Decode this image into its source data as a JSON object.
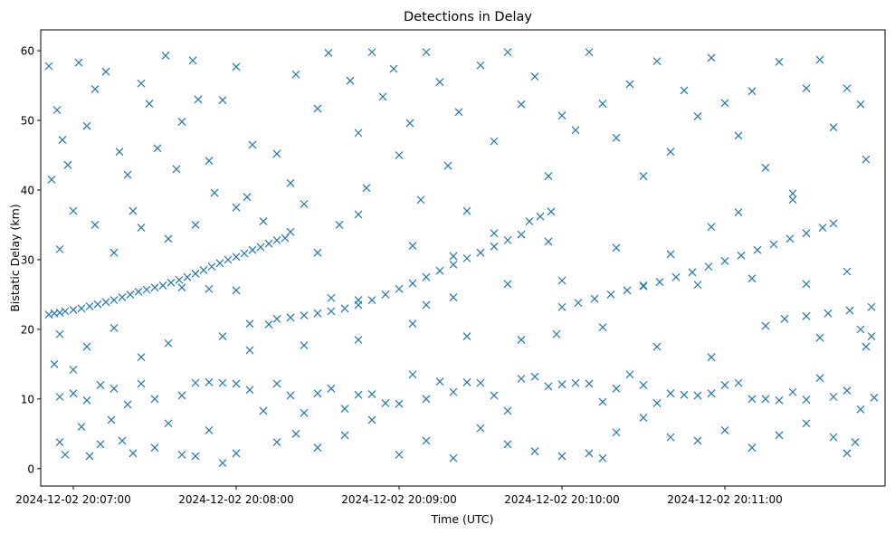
{
  "chart_data": {
    "type": "scatter",
    "title": "Detections in Delay",
    "xlabel": "Time (UTC)",
    "ylabel": "Bistatic Delay (km)",
    "marker": "x",
    "color": "#1f77b4",
    "grid": false,
    "legend": "none",
    "x_unit": "time",
    "xlim": [
      "2024-12-02 20:06:48",
      "2024-12-02 20:11:59"
    ],
    "ylim": [
      -2.5,
      63
    ],
    "xticks": [
      "2024-12-02 20:07:00",
      "2024-12-02 20:08:00",
      "2024-12-02 20:09:00",
      "2024-12-02 20:10:00",
      "2024-12-02 20:11:00"
    ],
    "yticks": [
      0,
      10,
      20,
      30,
      40,
      50,
      60
    ],
    "points": [
      [
        "2024-12-02 20:06:51",
        22.1
      ],
      [
        "2024-12-02 20:06:53",
        22.3
      ],
      [
        "2024-12-02 20:06:55",
        22.4
      ],
      [
        "2024-12-02 20:06:57",
        22.6
      ],
      [
        "2024-12-02 20:07:00",
        22.8
      ],
      [
        "2024-12-02 20:07:03",
        23.0
      ],
      [
        "2024-12-02 20:07:06",
        23.3
      ],
      [
        "2024-12-02 20:07:09",
        23.6
      ],
      [
        "2024-12-02 20:07:12",
        23.9
      ],
      [
        "2024-12-02 20:07:15",
        24.2
      ],
      [
        "2024-12-02 20:07:18",
        24.6
      ],
      [
        "2024-12-02 20:07:21",
        25.0
      ],
      [
        "2024-12-02 20:07:24",
        25.4
      ],
      [
        "2024-12-02 20:07:27",
        25.7
      ],
      [
        "2024-12-02 20:07:30",
        26.0
      ],
      [
        "2024-12-02 20:07:33",
        26.3
      ],
      [
        "2024-12-02 20:07:36",
        26.7
      ],
      [
        "2024-12-02 20:07:39",
        27.1
      ],
      [
        "2024-12-02 20:07:42",
        27.5
      ],
      [
        "2024-12-02 20:07:45",
        28.0
      ],
      [
        "2024-12-02 20:07:48",
        28.5
      ],
      [
        "2024-12-02 20:07:51",
        29.0
      ],
      [
        "2024-12-02 20:07:54",
        29.5
      ],
      [
        "2024-12-02 20:07:57",
        30.0
      ],
      [
        "2024-12-02 20:08:00",
        30.4
      ],
      [
        "2024-12-02 20:08:03",
        30.9
      ],
      [
        "2024-12-02 20:08:06",
        31.4
      ],
      [
        "2024-12-02 20:08:09",
        31.8
      ],
      [
        "2024-12-02 20:08:12",
        32.3
      ],
      [
        "2024-12-02 20:08:15",
        32.8
      ],
      [
        "2024-12-02 20:08:18",
        33.1
      ],
      [
        "2024-12-02 20:08:15",
        21.5
      ],
      [
        "2024-12-02 20:08:20",
        21.7
      ],
      [
        "2024-12-02 20:08:25",
        22.0
      ],
      [
        "2024-12-02 20:08:30",
        22.3
      ],
      [
        "2024-12-02 20:08:35",
        22.6
      ],
      [
        "2024-12-02 20:08:40",
        23.0
      ],
      [
        "2024-12-02 20:08:45",
        23.5
      ],
      [
        "2024-12-02 20:08:50",
        24.2
      ],
      [
        "2024-12-02 20:08:55",
        25.0
      ],
      [
        "2024-12-02 20:09:00",
        25.8
      ],
      [
        "2024-12-02 20:09:05",
        26.6
      ],
      [
        "2024-12-02 20:09:10",
        27.5
      ],
      [
        "2024-12-02 20:09:15",
        28.4
      ],
      [
        "2024-12-02 20:09:20",
        29.3
      ],
      [
        "2024-12-02 20:09:25",
        30.2
      ],
      [
        "2024-12-02 20:09:30",
        31.0
      ],
      [
        "2024-12-02 20:09:35",
        31.9
      ],
      [
        "2024-12-02 20:09:40",
        32.8
      ],
      [
        "2024-12-02 20:09:45",
        33.6
      ],
      [
        "2024-12-02 20:09:48",
        35.5
      ],
      [
        "2024-12-02 20:09:52",
        36.2
      ],
      [
        "2024-12-02 20:09:56",
        36.9
      ],
      [
        "2024-12-02 20:10:00",
        23.2
      ],
      [
        "2024-12-02 20:10:06",
        23.8
      ],
      [
        "2024-12-02 20:10:12",
        24.4
      ],
      [
        "2024-12-02 20:10:18",
        25.0
      ],
      [
        "2024-12-02 20:10:24",
        25.6
      ],
      [
        "2024-12-02 20:10:30",
        26.2
      ],
      [
        "2024-12-02 20:10:36",
        26.8
      ],
      [
        "2024-12-02 20:10:42",
        27.5
      ],
      [
        "2024-12-02 20:10:48",
        28.2
      ],
      [
        "2024-12-02 20:10:54",
        29.0
      ],
      [
        "2024-12-02 20:11:00",
        29.8
      ],
      [
        "2024-12-02 20:11:06",
        30.6
      ],
      [
        "2024-12-02 20:11:12",
        31.4
      ],
      [
        "2024-12-02 20:11:18",
        32.2
      ],
      [
        "2024-12-02 20:11:24",
        33.0
      ],
      [
        "2024-12-02 20:11:30",
        33.8
      ],
      [
        "2024-12-02 20:11:36",
        34.6
      ],
      [
        "2024-12-02 20:11:40",
        35.2
      ],
      [
        "2024-12-02 20:11:22",
        21.5
      ],
      [
        "2024-12-02 20:11:30",
        21.9
      ],
      [
        "2024-12-02 20:11:38",
        22.3
      ],
      [
        "2024-12-02 20:11:46",
        22.7
      ],
      [
        "2024-12-02 20:11:54",
        23.2
      ],
      [
        "2024-12-02 20:07:40",
        26.0
      ],
      [
        "2024-12-02 20:07:50",
        25.8
      ],
      [
        "2024-12-02 20:08:00",
        25.6
      ],
      [
        "2024-12-02 20:08:05",
        20.8
      ],
      [
        "2024-12-02 20:08:12",
        20.7
      ],
      [
        "2024-12-02 20:08:35",
        24.5
      ],
      [
        "2024-12-02 20:08:45",
        24.2
      ],
      [
        "2024-12-02 20:09:10",
        23.5
      ],
      [
        "2024-12-02 20:09:20",
        24.6
      ],
      [
        "2024-12-02 20:09:40",
        26.5
      ],
      [
        "2024-12-02 20:10:00",
        27.0
      ],
      [
        "2024-12-02 20:10:30",
        26.3
      ],
      [
        "2024-12-02 20:10:50",
        26.4
      ],
      [
        "2024-12-02 20:11:10",
        27.3
      ],
      [
        "2024-12-02 20:11:30",
        26.5
      ],
      [
        "2024-12-02 20:07:25",
        34.6
      ],
      [
        "2024-12-02 20:10:55",
        34.7
      ],
      [
        "2024-12-02 20:06:55",
        10.3
      ],
      [
        "2024-12-02 20:07:00",
        10.8
      ],
      [
        "2024-12-02 20:07:05",
        9.8
      ],
      [
        "2024-12-02 20:07:10",
        12.0
      ],
      [
        "2024-12-02 20:07:15",
        11.5
      ],
      [
        "2024-12-02 20:07:20",
        9.2
      ],
      [
        "2024-12-02 20:07:25",
        12.2
      ],
      [
        "2024-12-02 20:07:30",
        10.0
      ],
      [
        "2024-12-02 20:07:40",
        10.5
      ],
      [
        "2024-12-02 20:07:45",
        12.3
      ],
      [
        "2024-12-02 20:07:50",
        12.4
      ],
      [
        "2024-12-02 20:07:55",
        12.3
      ],
      [
        "2024-12-02 20:08:00",
        12.2
      ],
      [
        "2024-12-02 20:08:05",
        11.3
      ],
      [
        "2024-12-02 20:08:10",
        8.3
      ],
      [
        "2024-12-02 20:08:15",
        12.2
      ],
      [
        "2024-12-02 20:08:20",
        10.5
      ],
      [
        "2024-12-02 20:08:25",
        8.0
      ],
      [
        "2024-12-02 20:08:30",
        10.8
      ],
      [
        "2024-12-02 20:08:35",
        11.5
      ],
      [
        "2024-12-02 20:08:40",
        8.6
      ],
      [
        "2024-12-02 20:08:45",
        10.6
      ],
      [
        "2024-12-02 20:08:50",
        10.7
      ],
      [
        "2024-12-02 20:08:55",
        9.4
      ],
      [
        "2024-12-02 20:09:00",
        9.3
      ],
      [
        "2024-12-02 20:09:05",
        13.5
      ],
      [
        "2024-12-02 20:09:10",
        10.0
      ],
      [
        "2024-12-02 20:09:15",
        12.5
      ],
      [
        "2024-12-02 20:09:20",
        11.0
      ],
      [
        "2024-12-02 20:09:25",
        12.4
      ],
      [
        "2024-12-02 20:09:30",
        12.3
      ],
      [
        "2024-12-02 20:09:35",
        10.5
      ],
      [
        "2024-12-02 20:09:40",
        8.3
      ],
      [
        "2024-12-02 20:09:45",
        12.9
      ],
      [
        "2024-12-02 20:09:50",
        13.2
      ],
      [
        "2024-12-02 20:09:55",
        11.8
      ],
      [
        "2024-12-02 20:10:00",
        12.1
      ],
      [
        "2024-12-02 20:10:05",
        12.3
      ],
      [
        "2024-12-02 20:10:10",
        12.2
      ],
      [
        "2024-12-02 20:10:15",
        9.6
      ],
      [
        "2024-12-02 20:10:20",
        11.5
      ],
      [
        "2024-12-02 20:10:25",
        13.5
      ],
      [
        "2024-12-02 20:10:30",
        12.0
      ],
      [
        "2024-12-02 20:10:35",
        9.4
      ],
      [
        "2024-12-02 20:10:40",
        10.8
      ],
      [
        "2024-12-02 20:10:45",
        10.6
      ],
      [
        "2024-12-02 20:10:50",
        10.5
      ],
      [
        "2024-12-02 20:10:55",
        10.8
      ],
      [
        "2024-12-02 20:11:00",
        12.0
      ],
      [
        "2024-12-02 20:11:05",
        12.3
      ],
      [
        "2024-12-02 20:11:10",
        10.0
      ],
      [
        "2024-12-02 20:11:15",
        10.0
      ],
      [
        "2024-12-02 20:11:20",
        9.8
      ],
      [
        "2024-12-02 20:11:25",
        11.0
      ],
      [
        "2024-12-02 20:11:30",
        9.9
      ],
      [
        "2024-12-02 20:11:35",
        13.0
      ],
      [
        "2024-12-02 20:11:40",
        10.3
      ],
      [
        "2024-12-02 20:11:45",
        11.2
      ],
      [
        "2024-12-02 20:11:50",
        8.5
      ],
      [
        "2024-12-02 20:11:55",
        10.2
      ],
      [
        "2024-12-02 20:06:51",
        57.8
      ],
      [
        "2024-12-02 20:06:54",
        51.5
      ],
      [
        "2024-12-02 20:06:56",
        47.2
      ],
      [
        "2024-12-02 20:06:58",
        43.6
      ],
      [
        "2024-12-02 20:07:02",
        58.3
      ],
      [
        "2024-12-02 20:07:05",
        49.2
      ],
      [
        "2024-12-02 20:07:08",
        54.5
      ],
      [
        "2024-12-02 20:07:12",
        57.0
      ],
      [
        "2024-12-02 20:07:17",
        45.5
      ],
      [
        "2024-12-02 20:07:20",
        42.2
      ],
      [
        "2024-12-02 20:07:25",
        55.3
      ],
      [
        "2024-12-02 20:07:28",
        52.4
      ],
      [
        "2024-12-02 20:07:31",
        46.0
      ],
      [
        "2024-12-02 20:07:34",
        59.3
      ],
      [
        "2024-12-02 20:07:38",
        43.0
      ],
      [
        "2024-12-02 20:07:40",
        49.8
      ],
      [
        "2024-12-02 20:07:44",
        58.6
      ],
      [
        "2024-12-02 20:07:46",
        53.0
      ],
      [
        "2024-12-02 20:07:50",
        44.2
      ],
      [
        "2024-12-02 20:07:52",
        39.6
      ],
      [
        "2024-12-02 20:07:55",
        52.9
      ],
      [
        "2024-12-02 20:08:00",
        57.7
      ],
      [
        "2024-12-02 20:08:04",
        39.0
      ],
      [
        "2024-12-02 20:08:06",
        46.5
      ],
      [
        "2024-12-02 20:08:10",
        35.5
      ],
      [
        "2024-12-02 20:08:15",
        45.2
      ],
      [
        "2024-12-02 20:08:20",
        41.0
      ],
      [
        "2024-12-02 20:08:22",
        56.6
      ],
      [
        "2024-12-02 20:08:25",
        38.0
      ],
      [
        "2024-12-02 20:08:30",
        51.7
      ],
      [
        "2024-12-02 20:08:34",
        59.7
      ],
      [
        "2024-12-02 20:08:38",
        35.0
      ],
      [
        "2024-12-02 20:08:42",
        55.7
      ],
      [
        "2024-12-02 20:08:45",
        48.2
      ],
      [
        "2024-12-02 20:08:48",
        40.3
      ],
      [
        "2024-12-02 20:08:50",
        59.8
      ],
      [
        "2024-12-02 20:08:54",
        53.4
      ],
      [
        "2024-12-02 20:08:58",
        57.4
      ],
      [
        "2024-12-02 20:09:00",
        45.0
      ],
      [
        "2024-12-02 20:09:04",
        49.6
      ],
      [
        "2024-12-02 20:09:08",
        38.6
      ],
      [
        "2024-12-02 20:09:10",
        59.8
      ],
      [
        "2024-12-02 20:09:15",
        55.5
      ],
      [
        "2024-12-02 20:09:18",
        43.5
      ],
      [
        "2024-12-02 20:09:22",
        51.2
      ],
      [
        "2024-12-02 20:09:25",
        37.0
      ],
      [
        "2024-12-02 20:09:30",
        57.9
      ],
      [
        "2024-12-02 20:09:35",
        47.0
      ],
      [
        "2024-12-02 20:09:40",
        59.8
      ],
      [
        "2024-12-02 20:09:45",
        52.3
      ],
      [
        "2024-12-02 20:09:50",
        56.3
      ],
      [
        "2024-12-02 20:09:55",
        42.0
      ],
      [
        "2024-12-02 20:10:00",
        50.7
      ],
      [
        "2024-12-02 20:10:05",
        48.6
      ],
      [
        "2024-12-02 20:10:10",
        59.8
      ],
      [
        "2024-12-02 20:10:15",
        52.4
      ],
      [
        "2024-12-02 20:10:20",
        47.5
      ],
      [
        "2024-12-02 20:10:25",
        55.2
      ],
      [
        "2024-12-02 20:10:30",
        42.0
      ],
      [
        "2024-12-02 20:10:35",
        58.5
      ],
      [
        "2024-12-02 20:10:40",
        45.5
      ],
      [
        "2024-12-02 20:10:45",
        54.3
      ],
      [
        "2024-12-02 20:10:50",
        50.6
      ],
      [
        "2024-12-02 20:10:55",
        59.0
      ],
      [
        "2024-12-02 20:11:00",
        52.5
      ],
      [
        "2024-12-02 20:11:05",
        47.8
      ],
      [
        "2024-12-02 20:11:10",
        54.2
      ],
      [
        "2024-12-02 20:11:15",
        43.2
      ],
      [
        "2024-12-02 20:11:20",
        58.4
      ],
      [
        "2024-12-02 20:11:25",
        39.5
      ],
      [
        "2024-12-02 20:11:30",
        54.6
      ],
      [
        "2024-12-02 20:11:35",
        58.7
      ],
      [
        "2024-12-02 20:11:40",
        49.0
      ],
      [
        "2024-12-02 20:11:45",
        54.6
      ],
      [
        "2024-12-02 20:11:50",
        52.3
      ],
      [
        "2024-12-02 20:11:52",
        44.4
      ],
      [
        "2024-12-02 20:06:52",
        41.5
      ],
      [
        "2024-12-02 20:06:55",
        31.5
      ],
      [
        "2024-12-02 20:07:00",
        37.0
      ],
      [
        "2024-12-02 20:07:08",
        35.0
      ],
      [
        "2024-12-02 20:07:15",
        31.0
      ],
      [
        "2024-12-02 20:07:22",
        37.0
      ],
      [
        "2024-12-02 20:07:35",
        33.0
      ],
      [
        "2024-12-02 20:07:45",
        35.0
      ],
      [
        "2024-12-02 20:08:00",
        37.5
      ],
      [
        "2024-12-02 20:08:20",
        34.0
      ],
      [
        "2024-12-02 20:08:30",
        31.0
      ],
      [
        "2024-12-02 20:08:45",
        36.5
      ],
      [
        "2024-12-02 20:09:05",
        32.0
      ],
      [
        "2024-12-02 20:09:20",
        30.5
      ],
      [
        "2024-12-02 20:09:35",
        33.8
      ],
      [
        "2024-12-02 20:09:55",
        32.6
      ],
      [
        "2024-12-02 20:10:20",
        31.7
      ],
      [
        "2024-12-02 20:10:40",
        30.8
      ],
      [
        "2024-12-02 20:11:05",
        36.8
      ],
      [
        "2024-12-02 20:11:25",
        38.6
      ],
      [
        "2024-12-02 20:11:45",
        28.3
      ],
      [
        "2024-12-02 20:06:53",
        15.0
      ],
      [
        "2024-12-02 20:06:55",
        3.8
      ],
      [
        "2024-12-02 20:06:57",
        2.0
      ],
      [
        "2024-12-02 20:07:00",
        14.2
      ],
      [
        "2024-12-02 20:07:03",
        6.0
      ],
      [
        "2024-12-02 20:07:06",
        1.8
      ],
      [
        "2024-12-02 20:07:10",
        3.5
      ],
      [
        "2024-12-02 20:07:14",
        7.0
      ],
      [
        "2024-12-02 20:07:18",
        4.0
      ],
      [
        "2024-12-02 20:07:22",
        2.2
      ],
      [
        "2024-12-02 20:07:25",
        16.0
      ],
      [
        "2024-12-02 20:07:30",
        3.0
      ],
      [
        "2024-12-02 20:07:35",
        6.5
      ],
      [
        "2024-12-02 20:07:40",
        2.0
      ],
      [
        "2024-12-02 20:07:45",
        1.8
      ],
      [
        "2024-12-02 20:07:50",
        5.5
      ],
      [
        "2024-12-02 20:07:55",
        0.8
      ],
      [
        "2024-12-02 20:08:00",
        2.2
      ],
      [
        "2024-12-02 20:08:05",
        17.0
      ],
      [
        "2024-12-02 20:08:15",
        3.8
      ],
      [
        "2024-12-02 20:08:22",
        5.0
      ],
      [
        "2024-12-02 20:08:30",
        3.0
      ],
      [
        "2024-12-02 20:08:40",
        4.8
      ],
      [
        "2024-12-02 20:08:50",
        7.0
      ],
      [
        "2024-12-02 20:09:00",
        2.0
      ],
      [
        "2024-12-02 20:09:10",
        4.0
      ],
      [
        "2024-12-02 20:09:20",
        1.5
      ],
      [
        "2024-12-02 20:09:30",
        5.8
      ],
      [
        "2024-12-02 20:09:40",
        3.5
      ],
      [
        "2024-12-02 20:09:50",
        2.5
      ],
      [
        "2024-12-02 20:10:00",
        1.8
      ],
      [
        "2024-12-02 20:10:10",
        2.2
      ],
      [
        "2024-12-02 20:10:15",
        1.5
      ],
      [
        "2024-12-02 20:10:20",
        5.2
      ],
      [
        "2024-12-02 20:10:30",
        7.3
      ],
      [
        "2024-12-02 20:10:40",
        4.5
      ],
      [
        "2024-12-02 20:10:50",
        4.0
      ],
      [
        "2024-12-02 20:11:00",
        5.5
      ],
      [
        "2024-12-02 20:11:10",
        3.0
      ],
      [
        "2024-12-02 20:11:20",
        4.8
      ],
      [
        "2024-12-02 20:11:30",
        6.5
      ],
      [
        "2024-12-02 20:11:40",
        4.5
      ],
      [
        "2024-12-02 20:11:45",
        2.2
      ],
      [
        "2024-12-02 20:11:48",
        3.8
      ],
      [
        "2024-12-02 20:11:52",
        17.5
      ],
      [
        "2024-12-02 20:11:54",
        19.0
      ],
      [
        "2024-12-02 20:06:55",
        19.3
      ],
      [
        "2024-12-02 20:07:05",
        17.5
      ],
      [
        "2024-12-02 20:07:15",
        20.2
      ],
      [
        "2024-12-02 20:07:35",
        18.0
      ],
      [
        "2024-12-02 20:07:55",
        19.0
      ],
      [
        "2024-12-02 20:08:25",
        17.7
      ],
      [
        "2024-12-02 20:08:45",
        18.5
      ],
      [
        "2024-12-02 20:09:05",
        20.8
      ],
      [
        "2024-12-02 20:09:25",
        19.0
      ],
      [
        "2024-12-02 20:09:45",
        18.5
      ],
      [
        "2024-12-02 20:09:58",
        19.3
      ],
      [
        "2024-12-02 20:10:15",
        20.3
      ],
      [
        "2024-12-02 20:10:35",
        17.5
      ],
      [
        "2024-12-02 20:10:55",
        16.0
      ],
      [
        "2024-12-02 20:11:15",
        20.5
      ],
      [
        "2024-12-02 20:11:35",
        18.8
      ],
      [
        "2024-12-02 20:11:50",
        20.0
      ]
    ]
  }
}
